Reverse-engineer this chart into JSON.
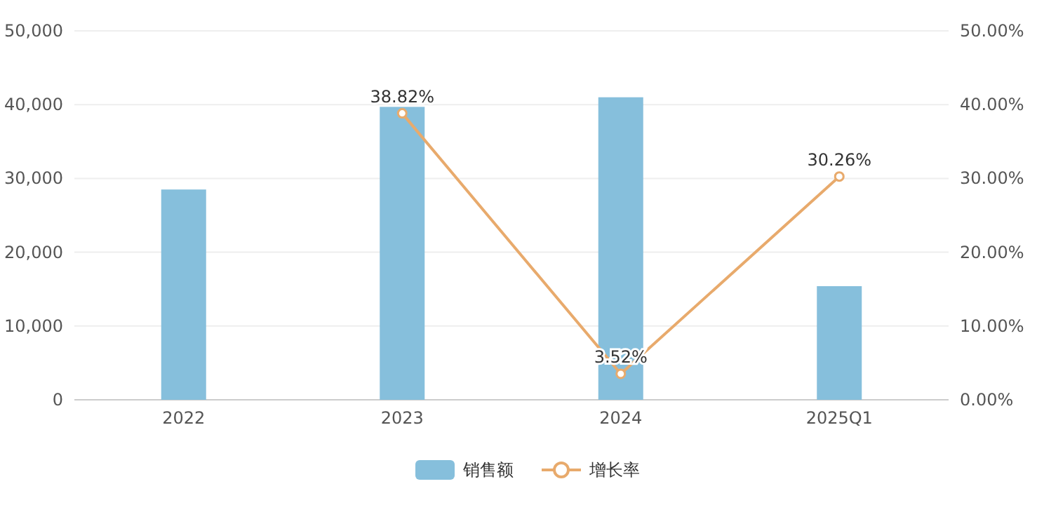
{
  "chart_data": {
    "type": "bar",
    "categories": [
      "2022",
      "2023",
      "2024",
      "2025Q1"
    ],
    "series": [
      {
        "name": "销售额",
        "color": "#86bfdc",
        "values": [
          28500,
          39700,
          41000,
          15400
        ]
      },
      {
        "name": "增长率",
        "type": "line",
        "axis": "y2",
        "color": "#e8aa6c",
        "values": [
          null,
          38.82,
          3.52,
          30.26
        ],
        "value_labels": [
          null,
          "38.82%",
          "3.52%",
          "30.26%"
        ]
      }
    ],
    "ylim": [
      0,
      50000
    ],
    "yticks": [
      {
        "value": 0,
        "label": "0"
      },
      {
        "value": 10000,
        "label": "10,000"
      },
      {
        "value": 20000,
        "label": "20,000"
      },
      {
        "value": 30000,
        "label": "30,000"
      },
      {
        "value": 40000,
        "label": "40,000"
      },
      {
        "value": 50000,
        "label": "50,000"
      }
    ],
    "y2lim": [
      0,
      50
    ],
    "y2ticks": [
      {
        "value": 0,
        "label": "0.00%"
      },
      {
        "value": 10,
        "label": "10.00%"
      },
      {
        "value": 20,
        "label": "20.00%"
      },
      {
        "value": 30,
        "label": "30.00%"
      },
      {
        "value": 40,
        "label": "40.00%"
      },
      {
        "value": 50,
        "label": "50.00%"
      }
    ],
    "grid": "y",
    "legend": "bottom",
    "marker": "circle",
    "line_style": "solid"
  }
}
